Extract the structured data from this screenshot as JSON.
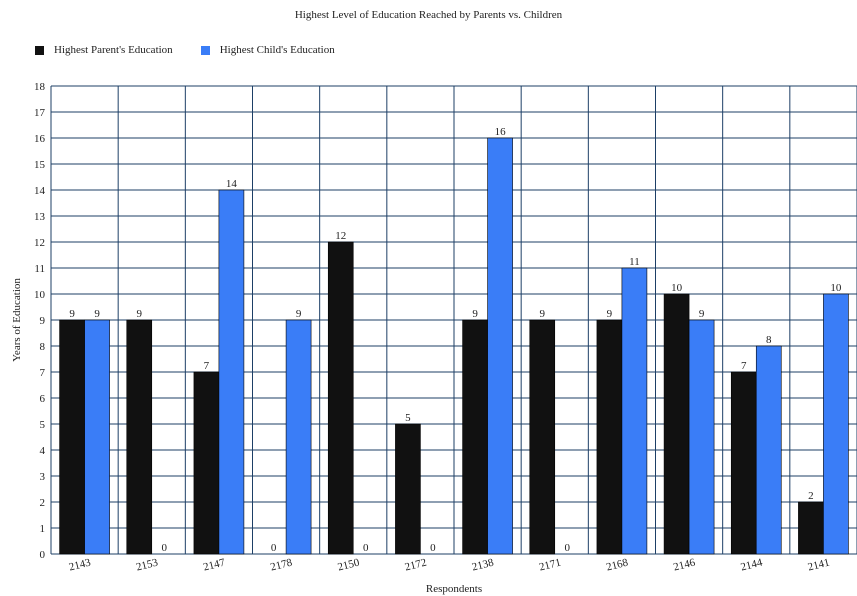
{
  "chart_data": {
    "type": "bar",
    "title": "Highest Level of Education Reached by Parents vs. Children",
    "xlabel": "Respondents",
    "ylabel": "Years of Education",
    "ylim": [
      0,
      18
    ],
    "yticks": [
      "0",
      "1",
      "2",
      "3",
      "4",
      "5",
      "6",
      "7",
      "8",
      "9",
      "10",
      "11",
      "12",
      "13",
      "14",
      "15",
      "16",
      "17",
      "18"
    ],
    "grid": true,
    "legend_position": "top-left",
    "categories": [
      "2143",
      "2153",
      "2147",
      "2178",
      "2150",
      "2172",
      "2138",
      "2171",
      "2168",
      "2146",
      "2144",
      "2141"
    ],
    "series": [
      {
        "name": "Highest Parent's Education",
        "color": "#111111",
        "values": [
          9,
          9,
          7,
          0,
          12,
          5,
          9,
          9,
          9,
          10,
          7,
          2
        ]
      },
      {
        "name": "Highest Child's Education",
        "color": "#3a7df7",
        "values": [
          9,
          0,
          14,
          9,
          0,
          0,
          16,
          0,
          11,
          9,
          8,
          10
        ]
      }
    ]
  }
}
